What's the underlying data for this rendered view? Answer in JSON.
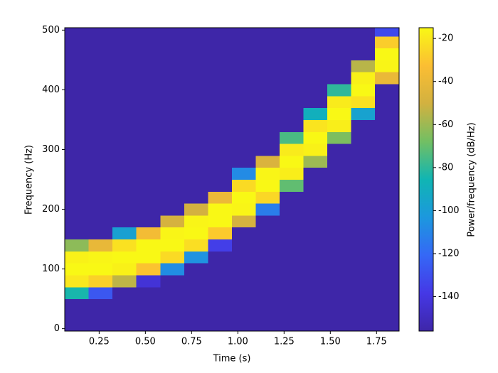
{
  "chart_data": {
    "type": "heatmap",
    "x_label": "Time (s)",
    "y_label": "Frequency (Hz)",
    "colorbar_label": "Power/frequency (dB/Hz)",
    "x": [
      0.129,
      0.258,
      0.387,
      0.516,
      0.645,
      0.774,
      0.903,
      1.032,
      1.161,
      1.29,
      1.419,
      1.548,
      1.677,
      1.806
    ],
    "y": [
      0,
      20,
      40,
      60,
      80,
      100,
      120,
      140,
      160,
      180,
      200,
      220,
      240,
      260,
      280,
      300,
      320,
      340,
      360,
      380,
      400,
      420,
      440,
      460,
      480,
      500
    ],
    "z": [
      [
        -156,
        -156,
        -156,
        -156,
        -156,
        -156,
        -156,
        -156,
        -156,
        -156,
        -156,
        -156,
        -156,
        -156
      ],
      [
        -156,
        -156,
        -156,
        -156,
        -156,
        -156,
        -156,
        -156,
        -156,
        -156,
        -156,
        -156,
        -156,
        -156
      ],
      [
        -156,
        -156,
        -156,
        -156,
        -156,
        -156,
        -156,
        -156,
        -156,
        -156,
        -156,
        -156,
        -156,
        -156
      ],
      [
        -84,
        -127,
        -156,
        -156,
        -156,
        -156,
        -156,
        -156,
        -156,
        -156,
        -156,
        -156,
        -156,
        -156
      ],
      [
        -20,
        -27,
        -54,
        -143,
        -156,
        -156,
        -156,
        -156,
        -156,
        -156,
        -156,
        -156,
        -156,
        -156
      ],
      [
        -15,
        -15,
        -17,
        -31,
        -107,
        -156,
        -156,
        -156,
        -156,
        -156,
        -156,
        -156,
        -156,
        -156
      ],
      [
        -17,
        -16,
        -15,
        -15,
        -24,
        -105,
        -156,
        -156,
        -156,
        -156,
        -156,
        -156,
        -156,
        -156
      ],
      [
        -63,
        -41,
        -22,
        -15,
        -15,
        -23,
        -136,
        -156,
        -156,
        -156,
        -156,
        -156,
        -156,
        -156
      ],
      [
        -156,
        -156,
        -98,
        -36,
        -16,
        -15,
        -29,
        -156,
        -156,
        -156,
        -156,
        -156,
        -156,
        -156
      ],
      [
        -156,
        -156,
        -156,
        -156,
        -49,
        -16,
        -15,
        -49,
        -156,
        -156,
        -156,
        -156,
        -156,
        -156
      ],
      [
        -156,
        -156,
        -156,
        -156,
        -156,
        -50,
        -15,
        -16,
        -113,
        -156,
        -156,
        -156,
        -156,
        -156
      ],
      [
        -156,
        -156,
        -156,
        -156,
        -156,
        -156,
        -39,
        -15,
        -25,
        -156,
        -156,
        -156,
        -156,
        -156
      ],
      [
        -156,
        -156,
        -156,
        -156,
        -156,
        -156,
        -156,
        -24,
        -15,
        -71,
        -156,
        -156,
        -156,
        -156
      ],
      [
        -156,
        -156,
        -156,
        -156,
        -156,
        -156,
        -156,
        -108,
        -16,
        -18,
        -156,
        -156,
        -156,
        -156
      ],
      [
        -156,
        -156,
        -156,
        -156,
        -156,
        -156,
        -156,
        -156,
        -47,
        -15,
        -60,
        -156,
        -156,
        -156
      ],
      [
        -156,
        -156,
        -156,
        -156,
        -156,
        -156,
        -156,
        -156,
        -156,
        -19,
        -17,
        -156,
        -156,
        -156
      ],
      [
        -156,
        -156,
        -156,
        -156,
        -156,
        -156,
        -156,
        -156,
        -156,
        -75,
        -15,
        -66,
        -156,
        -156
      ],
      [
        -156,
        -156,
        -156,
        -156,
        -156,
        -156,
        -156,
        -156,
        -156,
        -156,
        -21,
        -18,
        -156,
        -156
      ],
      [
        -156,
        -156,
        -156,
        -156,
        -156,
        -156,
        -156,
        -156,
        -156,
        -156,
        -89,
        -15,
        -97,
        -156
      ],
      [
        -156,
        -156,
        -156,
        -156,
        -156,
        -156,
        -156,
        -156,
        -156,
        -156,
        -156,
        -19,
        -22,
        -156
      ],
      [
        -156,
        -156,
        -156,
        -156,
        -156,
        -156,
        -156,
        -156,
        -156,
        -156,
        -156,
        -80,
        -15,
        -156
      ],
      [
        -156,
        -156,
        -156,
        -156,
        -156,
        -156,
        -156,
        -156,
        -156,
        -156,
        -156,
        -156,
        -17,
        -40
      ],
      [
        -156,
        -156,
        -156,
        -156,
        -156,
        -156,
        -156,
        -156,
        -156,
        -156,
        -156,
        -156,
        -55,
        -16
      ],
      [
        -156,
        -156,
        -156,
        -156,
        -156,
        -156,
        -156,
        -156,
        -156,
        -156,
        -156,
        -156,
        -156,
        -15
      ],
      [
        -156,
        -156,
        -156,
        -156,
        -156,
        -156,
        -156,
        -156,
        -156,
        -156,
        -156,
        -156,
        -156,
        -28
      ],
      [
        -156,
        -156,
        -156,
        -156,
        -156,
        -156,
        -156,
        -156,
        -156,
        -156,
        -156,
        -156,
        -156,
        -132
      ]
    ],
    "xlim": [
      0.064,
      1.872
    ],
    "ylim": [
      -4,
      504
    ],
    "xticks": [
      0.25,
      {
        "value": 0.5,
        "label": "0.50"
      },
      0.75,
      {
        "value": 1,
        "label": "1.00"
      },
      1.25,
      {
        "value": 1.5,
        "label": "1.50"
      },
      1.75
    ],
    "yticks": [
      0,
      100,
      200,
      300,
      400,
      500
    ],
    "clim": [
      -156,
      -15
    ],
    "cticks": [
      -140,
      -120,
      -100,
      -80,
      -60,
      -40,
      -20
    ],
    "colormap": [
      "#3e26a8",
      "#4538e6",
      "#3568f6",
      "#1c98de",
      "#10b5b3",
      "#72bf63",
      "#d2b140",
      "#fbbe33",
      "#f9f815"
    ]
  }
}
